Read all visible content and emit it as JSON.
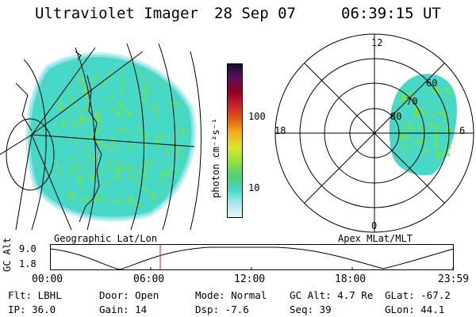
{
  "header": {
    "title": "Ultraviolet Imager",
    "date": "28 Sep 07",
    "time": "06:39:15 UT"
  },
  "colorbar": {
    "unit": "photon cm⁻²s⁻¹",
    "tick_labels": [
      "100",
      "10"
    ],
    "colors": [
      "#1a0a30",
      "#5a1060",
      "#900020",
      "#cc2030",
      "#e06010",
      "#f0b020",
      "#d8e830",
      "#90e040",
      "#50d070",
      "#40d8c8",
      "#a8e8f0",
      "#e8f4f8"
    ]
  },
  "left_map": {
    "label": "Geographic Lat/Lon",
    "emission_color": "#66dd55"
  },
  "polar_map": {
    "label": "Apex MLat/MLT",
    "mlt_labels": {
      "top": "12",
      "left": "18",
      "right": "6",
      "bottom": "0"
    },
    "lat_labels": [
      "60",
      "70",
      "80"
    ]
  },
  "altitude_plot": {
    "ylabel": "GC Alt",
    "y_ticks": [
      "9.0",
      "1.8"
    ],
    "x_ticks": [
      "00:00",
      "06:00",
      "12:00",
      "18:00",
      "23:59"
    ],
    "marker_color": "#cc2020"
  },
  "info": {
    "flt": "Flt: LBHL",
    "ip": "IP: 36.0",
    "door": "Door: Open",
    "gain": "Gain: 14",
    "mode": "Mode: Normal",
    "dsp": "Dsp:   -7.6",
    "gcalt": "GC Alt: 4.7 Re",
    "seq": "Seq: 39",
    "glat": "GLat: -67.2",
    "glon": "GLon:  44.1"
  }
}
